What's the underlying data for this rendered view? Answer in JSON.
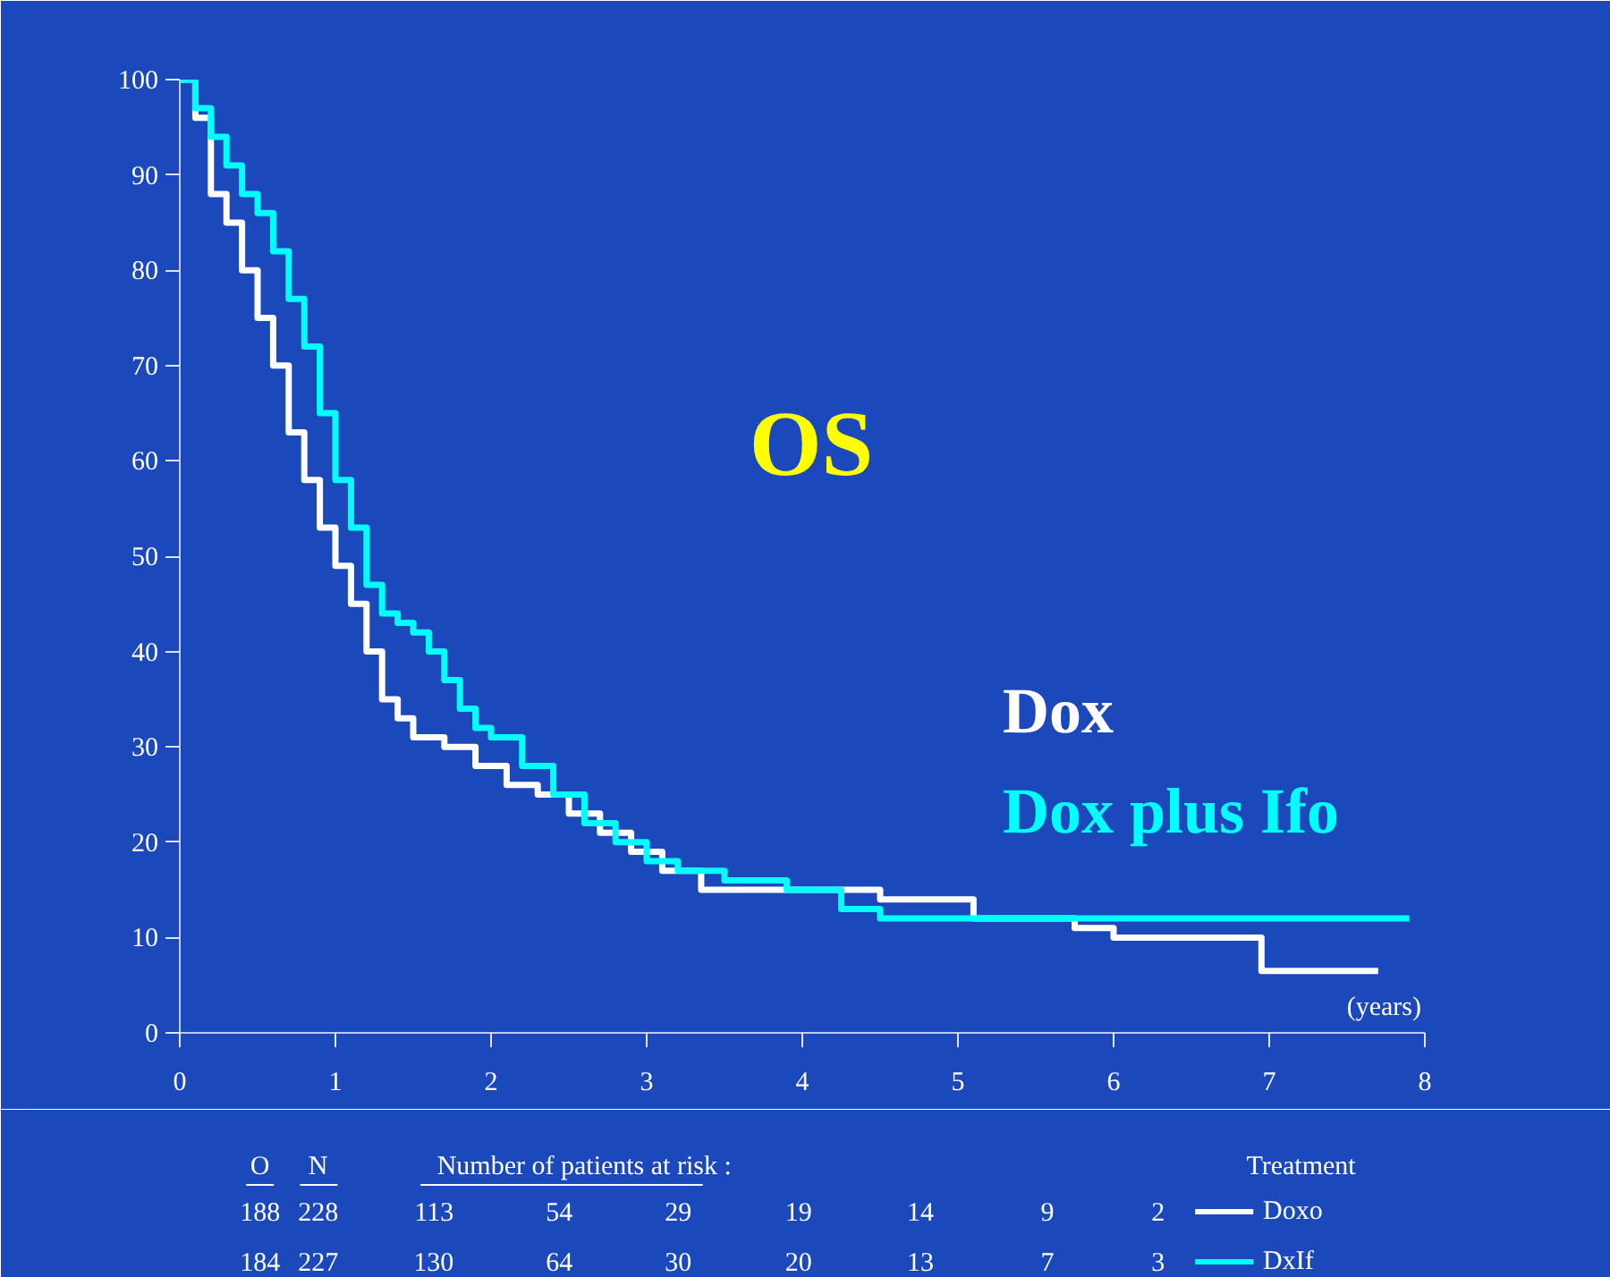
{
  "chart_data": {
    "type": "step",
    "title": "OS",
    "xlabel": "(years)",
    "xlim": [
      0,
      8
    ],
    "ylim": [
      0,
      100
    ],
    "xticks": [
      0,
      1,
      2,
      3,
      4,
      5,
      6,
      7,
      8
    ],
    "yticks": [
      0,
      10,
      20,
      30,
      40,
      50,
      60,
      70,
      80,
      90,
      100
    ],
    "grid": false,
    "series": [
      {
        "name": "Dox",
        "color": "#ffffff",
        "x": [
          0,
          0.1,
          0.2,
          0.3,
          0.4,
          0.5,
          0.6,
          0.7,
          0.8,
          0.9,
          1.0,
          1.1,
          1.2,
          1.3,
          1.4,
          1.5,
          1.7,
          1.9,
          2.1,
          2.3,
          2.5,
          2.7,
          2.9,
          3.1,
          3.35,
          4.5,
          5.1,
          5.75,
          6.0,
          6.95,
          7.7
        ],
        "values": [
          100,
          96,
          88,
          85,
          80,
          75,
          70,
          63,
          58,
          53,
          49,
          45,
          40,
          35,
          33,
          31,
          30,
          28,
          26,
          25,
          23,
          21,
          19,
          17,
          15,
          14,
          12,
          11,
          10,
          6.5,
          6.5
        ]
      },
      {
        "name": "Dox plus Ifo",
        "color": "#00ffff",
        "x": [
          0,
          0.1,
          0.2,
          0.3,
          0.4,
          0.5,
          0.6,
          0.7,
          0.8,
          0.9,
          1.0,
          1.1,
          1.2,
          1.3,
          1.4,
          1.5,
          1.6,
          1.7,
          1.8,
          1.9,
          2.0,
          2.2,
          2.4,
          2.6,
          2.8,
          3.0,
          3.2,
          3.5,
          3.9,
          4.25,
          4.5,
          7.9
        ],
        "values": [
          100,
          97,
          94,
          91,
          88,
          86,
          82,
          77,
          72,
          65,
          58,
          53,
          47,
          44,
          43,
          42,
          40,
          37,
          34,
          32,
          31,
          28,
          25,
          22,
          20,
          18,
          17,
          16,
          15,
          13,
          12,
          12
        ]
      }
    ],
    "annotations": [
      "O",
      "N",
      "Number of patients at risk :",
      "Treatment",
      "188",
      "228",
      "113",
      "54",
      "29",
      "19",
      "14",
      "9",
      "2",
      "Doxo",
      "184",
      "227",
      "130",
      "64",
      "30",
      "20",
      "13",
      "7",
      "3",
      "DxIf"
    ]
  }
}
